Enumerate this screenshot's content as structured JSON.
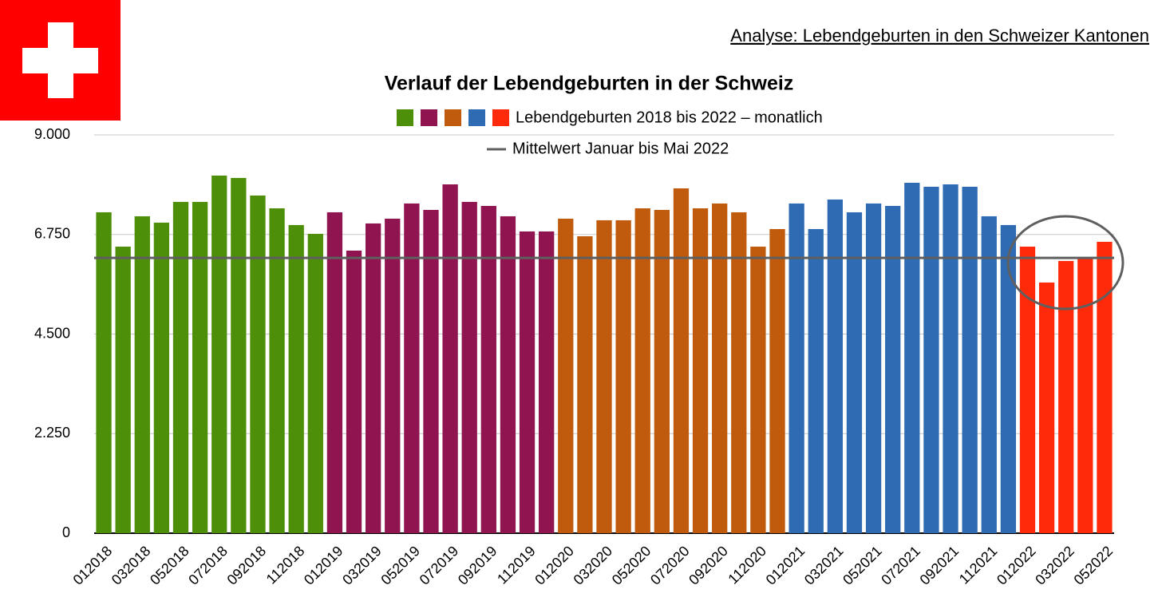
{
  "chart_data": {
    "type": "bar",
    "header": "Analyse: Lebendgeburten in den Schweizer Kantonen",
    "title": "Verlauf der Lebendgeburten in der Schweiz",
    "categories": [
      "012018",
      null,
      "032018",
      null,
      "052018",
      null,
      "072018",
      null,
      "092018",
      null,
      "112018",
      null,
      "012019",
      null,
      "032019",
      null,
      "052019",
      null,
      "072019",
      null,
      "092019",
      null,
      "112019",
      null,
      "012020",
      null,
      "032020",
      null,
      "052020",
      null,
      "072020",
      null,
      "092020",
      null,
      "112020",
      null,
      "012021",
      null,
      "032021",
      null,
      "052021",
      null,
      "072021",
      null,
      "092021",
      null,
      "112021",
      null,
      "012022",
      null,
      "032022",
      null,
      "052022"
    ],
    "series": [
      {
        "name": "Lebendgeburten 2018 bis 2022 – monatlich",
        "colors": [
          "#4e8f0a",
          "#8f1450",
          "#c05a0c",
          "#2e6bb3",
          "#ff2a0a"
        ],
        "values": [
          7251,
          6475,
          7161,
          7017,
          7486,
          7486,
          8081,
          8027,
          7630,
          7341,
          6963,
          6764,
          7251,
          6385,
          6999,
          7107,
          7450,
          7305,
          7882,
          7486,
          7395,
          7161,
          6818,
          6818,
          7107,
          6710,
          7071,
          7071,
          7341,
          7305,
          7792,
          7341,
          7450,
          7251,
          6475,
          6872,
          7450,
          6872,
          7540,
          7251,
          7450,
          7395,
          7918,
          7828,
          7882,
          7828,
          7161,
          6963,
          6475,
          5664,
          6151,
          6223,
          6584
        ]
      }
    ],
    "mean": {
      "name": "Mittelwert Januar bis Mai 2022",
      "value": 6220,
      "color": "#5f5f5f"
    },
    "ylim": [
      0,
      9000
    ],
    "yticks": [
      0,
      {
        "value": 2250,
        "label": "2.250"
      },
      {
        "value": 4500,
        "label": "4.500"
      },
      {
        "value": 6750,
        "label": "6.750"
      },
      {
        "value": 9000,
        "label": "9.000"
      }
    ],
    "grid": true
  }
}
